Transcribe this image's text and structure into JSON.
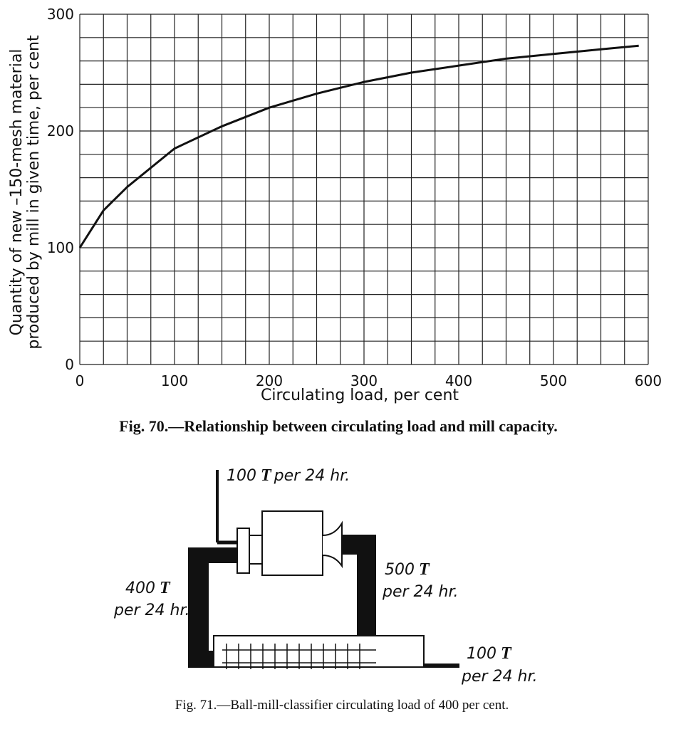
{
  "chart_data": {
    "type": "line",
    "x_label": "Circulating load, per cent",
    "y_label": [
      "Quantity of new –150-mesh material",
      "produced by mill in given time, per cent"
    ],
    "caption": "Fig. 70.—Relationship between circulating load and mill capacity.",
    "xlim": [
      0,
      600
    ],
    "ylim": [
      0,
      300
    ],
    "xticks": [
      0,
      100,
      200,
      300,
      400,
      500,
      600
    ],
    "yticks": [
      0,
      100,
      200,
      300
    ],
    "grid": true,
    "xgrid": [
      0,
      25,
      50,
      75,
      100,
      125,
      150,
      175,
      200,
      225,
      250,
      275,
      300,
      325,
      350,
      375,
      400,
      425,
      450,
      475,
      500,
      525,
      550,
      575,
      600
    ],
    "ygrid": [
      0,
      20,
      40,
      60,
      80,
      100,
      120,
      140,
      160,
      180,
      200,
      220,
      240,
      260,
      280,
      300
    ],
    "color": "#111111",
    "series": [
      {
        "name": "Mill capacity",
        "x": [
          0,
          25,
          50,
          100,
          150,
          200,
          250,
          300,
          350,
          400,
          450,
          500,
          550,
          590
        ],
        "values": [
          100,
          132,
          152,
          185,
          204,
          220,
          232,
          242,
          250,
          256,
          262,
          266,
          270,
          273
        ]
      }
    ]
  },
  "diagram": {
    "labels": [
      {
        "amount": "100",
        "unit": "T",
        "rate": "per 24 hr."
      },
      {
        "amount": "400",
        "unit": "T",
        "rate": "per 24 hr."
      },
      {
        "amount": "500",
        "unit": "T",
        "rate": "per 24 hr."
      },
      {
        "amount": "100",
        "unit": "T",
        "rate": "per 24 hr."
      }
    ],
    "caption": "Fig. 71.—Ball-mill-classifier circulating load of 400 per cent."
  }
}
